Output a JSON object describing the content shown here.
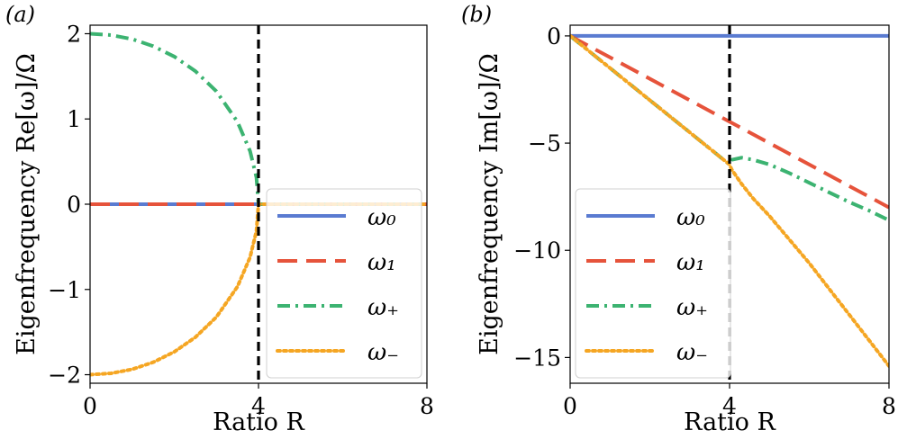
{
  "chart_data": [
    {
      "type": "line",
      "panel_label": "(a)",
      "xlabel": "Ratio R",
      "ylabel": "Eigenfrequency Re[ω]/Ω",
      "xlim": [
        0,
        8
      ],
      "ylim": [
        -2.1,
        2.1
      ],
      "xticks": [
        "0",
        "4",
        "8"
      ],
      "yticks": [
        "2",
        "1",
        "0",
        "−1",
        "−2"
      ],
      "ytick_values": [
        2,
        1,
        0,
        -1,
        -2
      ],
      "xtick_values": [
        0,
        4,
        8
      ],
      "vline_x": 4,
      "legend_position": "lower-right",
      "series": [
        {
          "name": "ω₀",
          "style": "solid",
          "color": "#5a7bd1",
          "x": [
            0,
            8
          ],
          "y": [
            0,
            0
          ]
        },
        {
          "name": "ω₁",
          "style": "dashed",
          "color": "#e6533b",
          "x": [
            0,
            8
          ],
          "y": [
            0,
            0
          ]
        },
        {
          "name": "ω₊",
          "style": "dashdot",
          "color": "#3cb371",
          "x": [
            0,
            0.5,
            1,
            1.5,
            2,
            2.5,
            3,
            3.5,
            3.8,
            3.95,
            4,
            8
          ],
          "y": [
            2.0,
            1.984,
            1.936,
            1.854,
            1.732,
            1.561,
            1.323,
            0.968,
            0.624,
            0.316,
            0,
            0
          ]
        },
        {
          "name": "ω₋",
          "style": "dotted",
          "color": "#f5a623",
          "x": [
            0,
            0.5,
            1,
            1.5,
            2,
            2.5,
            3,
            3.5,
            3.8,
            3.95,
            4,
            8
          ],
          "y": [
            -2.0,
            -1.984,
            -1.936,
            -1.854,
            -1.732,
            -1.561,
            -1.323,
            -0.968,
            -0.624,
            -0.316,
            0,
            0
          ]
        }
      ]
    },
    {
      "type": "line",
      "panel_label": "(b)",
      "xlabel": "Ratio R",
      "ylabel": "Eigenfrequency Im[ω]/Ω",
      "xlim": [
        0,
        8
      ],
      "ylim": [
        -16.2,
        0.5
      ],
      "xticks": [
        "0",
        "4",
        "8"
      ],
      "yticks": [
        "0",
        "−5",
        "−10",
        "−15"
      ],
      "ytick_values": [
        0,
        -5,
        -10,
        -15
      ],
      "xtick_values": [
        0,
        4,
        8
      ],
      "vline_x": 4,
      "legend_position": "lower-left",
      "series": [
        {
          "name": "ω₀",
          "style": "solid",
          "color": "#5a7bd1",
          "x": [
            0,
            8
          ],
          "y": [
            0,
            0
          ]
        },
        {
          "name": "ω₁",
          "style": "dashed",
          "color": "#e6533b",
          "x": [
            0,
            8
          ],
          "y": [
            0,
            -8
          ]
        },
        {
          "name": "ω₊",
          "style": "dashdot",
          "color": "#3cb371",
          "x": [
            0,
            4,
            4.05,
            4.3,
            4.6,
            5,
            5.5,
            6,
            6.5,
            7,
            7.5,
            8
          ],
          "y": [
            0,
            -6,
            -5.78,
            -5.68,
            -5.78,
            -6.0,
            -6.4,
            -6.85,
            -7.3,
            -7.75,
            -8.15,
            -8.6
          ]
        },
        {
          "name": "ω₋",
          "style": "dotted",
          "color": "#f5a623",
          "x": [
            0,
            4,
            4.05,
            4.3,
            4.6,
            5,
            5.5,
            6,
            6.5,
            7,
            7.5,
            8
          ],
          "y": [
            0,
            -6,
            -6.22,
            -6.9,
            -7.6,
            -8.4,
            -9.5,
            -10.6,
            -11.8,
            -13.0,
            -14.2,
            -15.4
          ]
        }
      ]
    }
  ]
}
